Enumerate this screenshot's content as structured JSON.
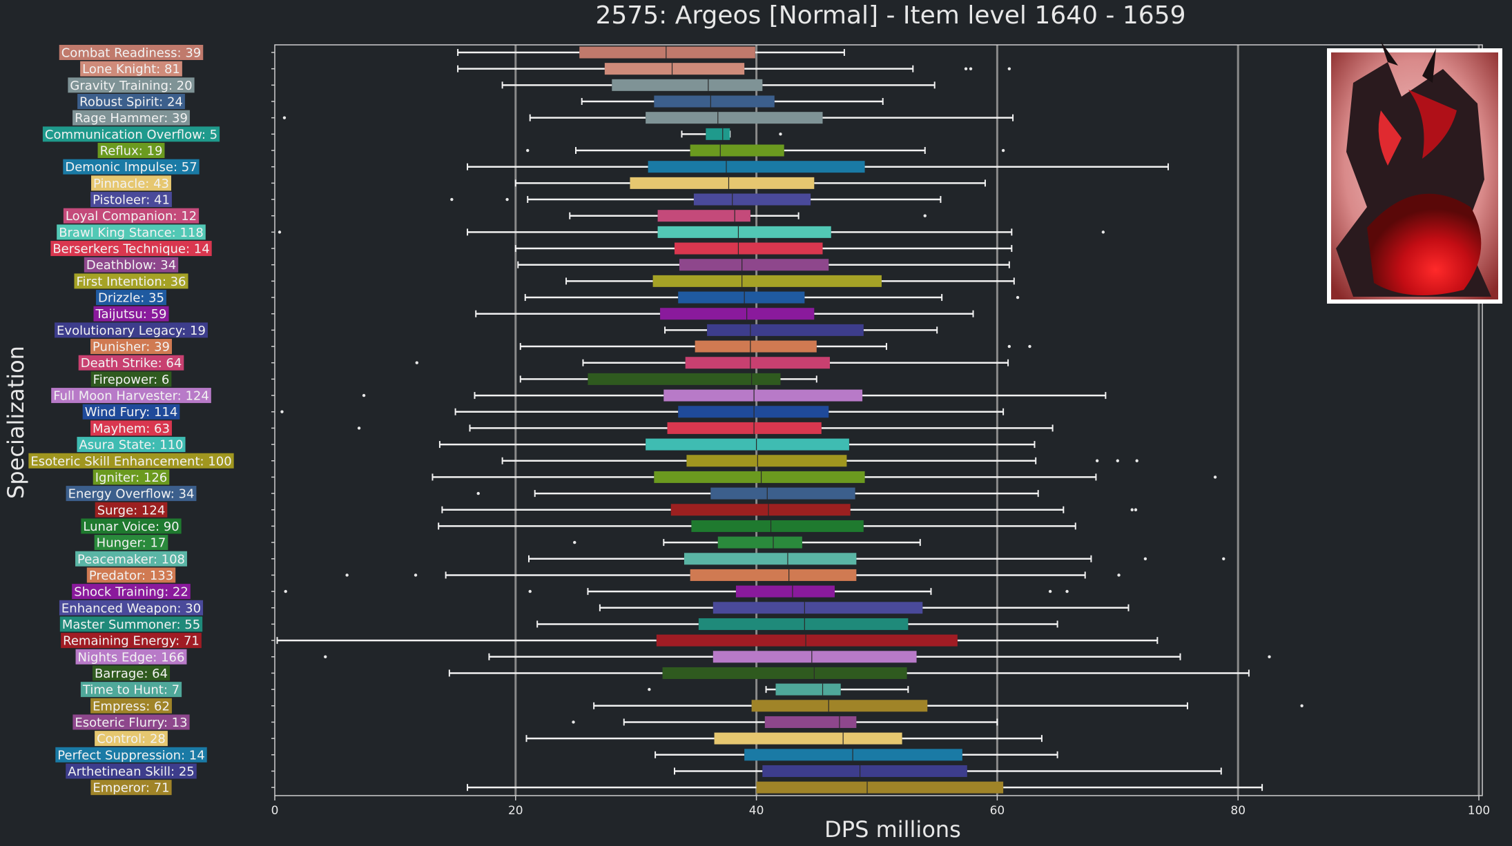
{
  "chart_data": {
    "type": "boxplot",
    "title": "2575: Argeos [Normal] - Item level 1640 - 1659",
    "xlabel": "DPS millions",
    "ylabel": "Specialization",
    "xlim": [
      0,
      102
    ],
    "xticks": [
      0,
      20,
      40,
      60,
      80,
      100
    ],
    "grid": "vertical gridlines at major ticks",
    "orientation": "horizontal",
    "categories": [
      {
        "label": "Combat Readiness: 39",
        "color": "#c07a6c",
        "whislo": 15.2,
        "q1": 25.3,
        "med": 32.5,
        "q3": 39.9,
        "whishi": 47.3,
        "fliers": []
      },
      {
        "label": "Lone Knight: 81",
        "color": "#cf8b7a",
        "whislo": 15.2,
        "q1": 27.4,
        "med": 33.0,
        "q3": 39.0,
        "whishi": 53.0,
        "fliers": [
          57.4,
          57.8,
          61.0
        ]
      },
      {
        "label": "Gravity Training: 20",
        "color": "#7f9396",
        "whislo": 18.9,
        "q1": 28.0,
        "med": 36.0,
        "q3": 40.5,
        "whishi": 54.8,
        "fliers": []
      },
      {
        "label": "Robust Spirit: 24",
        "color": "#3c5f8c",
        "whislo": 25.5,
        "q1": 31.5,
        "med": 36.2,
        "q3": 41.5,
        "whishi": 50.5,
        "fliers": []
      },
      {
        "label": "Rage Hammer: 39",
        "color": "#7f9396",
        "whislo": 21.2,
        "q1": 30.8,
        "med": 36.8,
        "q3": 45.5,
        "whishi": 61.3,
        "fliers": [
          0.8
        ]
      },
      {
        "label": "Communication Overflow: 5",
        "color": "#1f9a8c",
        "whislo": 33.8,
        "q1": 35.8,
        "med": 37.2,
        "q3": 37.8,
        "whishi": 37.8,
        "fliers": [
          42.0
        ]
      },
      {
        "label": "Reflux: 19",
        "color": "#6b9a1f",
        "whislo": 25.0,
        "q1": 34.5,
        "med": 37.0,
        "q3": 42.3,
        "whishi": 54.0,
        "fliers": [
          21.0,
          60.5
        ]
      },
      {
        "label": "Demonic Impulse: 57",
        "color": "#1a7aa5",
        "whislo": 16.0,
        "q1": 31.0,
        "med": 37.5,
        "q3": 49.0,
        "whishi": 74.2,
        "fliers": []
      },
      {
        "label": "Pinnacle: 43",
        "color": "#e6c770",
        "whislo": 20.0,
        "q1": 29.5,
        "med": 37.7,
        "q3": 44.8,
        "whishi": 59.0,
        "fliers": []
      },
      {
        "label": "Pistoleer: 41",
        "color": "#4a4a9a",
        "whislo": 21.0,
        "q1": 34.8,
        "med": 38.0,
        "q3": 44.5,
        "whishi": 55.3,
        "fliers": [
          14.7,
          19.3
        ]
      },
      {
        "label": "Loyal Companion: 12",
        "color": "#c44a7a",
        "whislo": 24.5,
        "q1": 31.8,
        "med": 38.2,
        "q3": 39.5,
        "whishi": 43.5,
        "fliers": [
          54.0
        ]
      },
      {
        "label": "Brawl King Stance: 118",
        "color": "#52c8b5",
        "whislo": 16.0,
        "q1": 31.8,
        "med": 38.5,
        "q3": 46.2,
        "whishi": 61.2,
        "fliers": [
          0.4,
          68.8
        ]
      },
      {
        "label": "Berserkers Technique: 14",
        "color": "#d9374f",
        "whislo": 20.0,
        "q1": 33.2,
        "med": 38.5,
        "q3": 45.5,
        "whishi": 61.2,
        "fliers": []
      },
      {
        "label": "Deathblow: 34",
        "color": "#8e478c",
        "whislo": 20.2,
        "q1": 33.6,
        "med": 38.8,
        "q3": 46.0,
        "whishi": 61.0,
        "fliers": []
      },
      {
        "label": "First Intention: 36",
        "color": "#a5a226",
        "whislo": 24.2,
        "q1": 31.4,
        "med": 38.8,
        "q3": 50.4,
        "whishi": 61.4,
        "fliers": []
      },
      {
        "label": "Drizzle: 35",
        "color": "#1f5aa0",
        "whislo": 20.8,
        "q1": 33.5,
        "med": 39.0,
        "q3": 44.0,
        "whishi": 55.4,
        "fliers": [
          61.7
        ]
      },
      {
        "label": "Taijutsu: 59",
        "color": "#8a1a9c",
        "whislo": 16.7,
        "q1": 32.0,
        "med": 39.2,
        "q3": 44.8,
        "whishi": 58.0,
        "fliers": []
      },
      {
        "label": "Evolutionary Legacy: 19",
        "color": "#3d3d8c",
        "whislo": 32.4,
        "q1": 35.9,
        "med": 39.5,
        "q3": 48.9,
        "whishi": 55.0,
        "fliers": []
      },
      {
        "label": "Punisher: 39",
        "color": "#d07a52",
        "whislo": 20.4,
        "q1": 34.9,
        "med": 39.5,
        "q3": 45.0,
        "whishi": 50.8,
        "fliers": [
          61.0,
          62.7
        ]
      },
      {
        "label": "Death Strike: 64",
        "color": "#c84070",
        "whislo": 25.6,
        "q1": 34.1,
        "med": 39.5,
        "q3": 46.1,
        "whishi": 60.9,
        "fliers": [
          11.8
        ]
      },
      {
        "label": "Firepower: 6",
        "color": "#2f5a1f",
        "whislo": 20.4,
        "q1": 26.0,
        "med": 39.6,
        "q3": 42.0,
        "whishi": 45.0,
        "fliers": []
      },
      {
        "label": "Full Moon Harvester: 124",
        "color": "#b87ac8",
        "whislo": 16.6,
        "q1": 32.3,
        "med": 39.8,
        "q3": 48.8,
        "whishi": 69.0,
        "fliers": [
          7.4
        ]
      },
      {
        "label": "Wind Fury: 114",
        "color": "#1f4a9a",
        "whislo": 15.0,
        "q1": 33.5,
        "med": 39.8,
        "q3": 46.0,
        "whishi": 60.5,
        "fliers": [
          0.6
        ]
      },
      {
        "label": "Mayhem: 63",
        "color": "#d9374f",
        "whislo": 16.2,
        "q1": 32.6,
        "med": 39.8,
        "q3": 45.4,
        "whishi": 64.6,
        "fliers": [
          7.0
        ]
      },
      {
        "label": "Asura State: 110",
        "color": "#3fbcb2",
        "whislo": 13.7,
        "q1": 30.8,
        "med": 40.0,
        "q3": 47.7,
        "whishi": 63.1,
        "fliers": []
      },
      {
        "label": "Esoteric Skill Enhancement: 100",
        "color": "#a0961f",
        "whislo": 18.9,
        "q1": 34.2,
        "med": 40.1,
        "q3": 47.5,
        "whishi": 63.2,
        "fliers": [
          68.3,
          70.0,
          71.6
        ]
      },
      {
        "label": "Igniter: 126",
        "color": "#6b9a1f",
        "whislo": 13.1,
        "q1": 31.5,
        "med": 40.4,
        "q3": 49.0,
        "whishi": 68.2,
        "fliers": [
          78.1
        ]
      },
      {
        "label": "Energy Overflow: 34",
        "color": "#3c5f8c",
        "whislo": 21.6,
        "q1": 36.2,
        "med": 40.9,
        "q3": 48.2,
        "whishi": 63.4,
        "fliers": [
          16.9
        ]
      },
      {
        "label": "Surge: 124",
        "color": "#9c2020",
        "whislo": 13.9,
        "q1": 32.9,
        "med": 41.0,
        "q3": 47.8,
        "whishi": 65.5,
        "fliers": [
          71.2,
          71.5
        ]
      },
      {
        "label": "Lunar Voice: 90",
        "color": "#1f7a2f",
        "whislo": 13.6,
        "q1": 34.6,
        "med": 41.2,
        "q3": 48.9,
        "whishi": 66.5,
        "fliers": []
      },
      {
        "label": "Hunger: 17",
        "color": "#2a8a3c",
        "whislo": 32.3,
        "q1": 36.8,
        "med": 41.4,
        "q3": 43.8,
        "whishi": 53.6,
        "fliers": [
          24.9
        ]
      },
      {
        "label": "Peacemaker: 108",
        "color": "#5ab5a5",
        "whislo": 21.1,
        "q1": 34.0,
        "med": 42.6,
        "q3": 48.3,
        "whishi": 67.8,
        "fliers": [
          72.3,
          78.8
        ]
      },
      {
        "label": "Predator: 133",
        "color": "#d07a52",
        "whislo": 14.2,
        "q1": 34.5,
        "med": 42.7,
        "q3": 48.3,
        "whishi": 67.3,
        "fliers": [
          6.0,
          11.7,
          70.1
        ]
      },
      {
        "label": "Shock Training: 22",
        "color": "#8a1a9c",
        "whislo": 26.0,
        "q1": 38.3,
        "med": 43.0,
        "q3": 46.5,
        "whishi": 54.5,
        "fliers": [
          0.9,
          21.2,
          64.4,
          65.8
        ]
      },
      {
        "label": "Enhanced Weapon: 30",
        "color": "#4a4a9a",
        "whislo": 27.0,
        "q1": 36.4,
        "med": 44.0,
        "q3": 53.8,
        "whishi": 70.9,
        "fliers": []
      },
      {
        "label": "Master Summoner: 55",
        "color": "#1f8a7a",
        "whislo": 21.8,
        "q1": 35.2,
        "med": 44.0,
        "q3": 52.6,
        "whishi": 65.0,
        "fliers": []
      },
      {
        "label": "Remaining Energy: 71",
        "color": "#a01c24",
        "whislo": 0.2,
        "q1": 31.7,
        "med": 44.1,
        "q3": 56.7,
        "whishi": 73.3,
        "fliers": []
      },
      {
        "label": "Nights Edge: 166",
        "color": "#b87ac8",
        "whislo": 17.8,
        "q1": 36.4,
        "med": 44.6,
        "q3": 53.3,
        "whishi": 75.2,
        "fliers": [
          4.2,
          82.6
        ]
      },
      {
        "label": "Barrage: 64",
        "color": "#2f5a1f",
        "whislo": 14.5,
        "q1": 32.2,
        "med": 44.8,
        "q3": 52.5,
        "whishi": 80.9,
        "fliers": []
      },
      {
        "label": "Time to Hunt: 7",
        "color": "#4fa89a",
        "whislo": 40.8,
        "q1": 41.6,
        "med": 45.5,
        "q3": 47.0,
        "whishi": 52.6,
        "fliers": [
          31.1
        ]
      },
      {
        "label": "Empress: 62",
        "color": "#a08428",
        "whislo": 26.5,
        "q1": 39.6,
        "med": 46.0,
        "q3": 54.2,
        "whishi": 75.8,
        "fliers": [
          85.3
        ]
      },
      {
        "label": "Esoteric Flurry: 13",
        "color": "#8e478c",
        "whislo": 29.0,
        "q1": 40.7,
        "med": 46.9,
        "q3": 48.3,
        "whishi": 60.0,
        "fliers": [
          24.8
        ]
      },
      {
        "label": "Control: 28",
        "color": "#e6c770",
        "whislo": 20.9,
        "q1": 36.5,
        "med": 47.2,
        "q3": 52.1,
        "whishi": 63.7,
        "fliers": []
      },
      {
        "label": "Perfect Suppression: 14",
        "color": "#1a7aa5",
        "whislo": 31.6,
        "q1": 39.0,
        "med": 48.0,
        "q3": 57.1,
        "whishi": 65.0,
        "fliers": []
      },
      {
        "label": "Arthetinean Skill: 25",
        "color": "#3d3d8c",
        "whislo": 33.2,
        "q1": 40.5,
        "med": 48.6,
        "q3": 57.5,
        "whishi": 78.6,
        "fliers": []
      },
      {
        "label": "Emperor: 71",
        "color": "#a08428",
        "whislo": 16.0,
        "q1": 40.0,
        "med": 49.2,
        "q3": 60.5,
        "whishi": 82.0,
        "fliers": []
      }
    ]
  }
}
